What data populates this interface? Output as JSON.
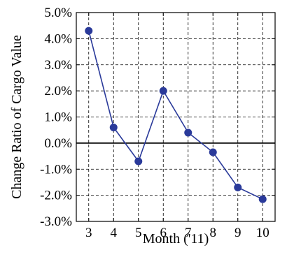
{
  "chart_data": {
    "type": "line",
    "title": "",
    "xlabel": "Month ('11)",
    "ylabel": "Change Ratio of Cargo Value",
    "xlim": [
      2.5,
      10.5
    ],
    "ylim": [
      -3.0,
      5.0
    ],
    "x_ticks": [
      3,
      4,
      5,
      6,
      7,
      8,
      9,
      10
    ],
    "x_tick_labels": [
      "3",
      "4",
      "5",
      "6",
      "7",
      "8",
      "9",
      "10"
    ],
    "y_ticks": [
      -3,
      -2,
      -1,
      0,
      1,
      2,
      3,
      4,
      5
    ],
    "y_tick_labels": [
      "-3.0%",
      "-2.0%",
      "-1.0%",
      "0.0%",
      "1.0%",
      "2.0%",
      "3.0%",
      "4.0%",
      "5.0%"
    ],
    "grid": true,
    "zero_line": true,
    "series": [
      {
        "x": [
          3,
          4,
          5,
          6,
          7,
          8,
          9,
          10
        ],
        "values": [
          4.3,
          0.6,
          -0.7,
          2.0,
          0.4,
          -0.35,
          -1.7,
          -2.15
        ],
        "color": "#2a3a9a",
        "marker": "circle"
      }
    ]
  }
}
